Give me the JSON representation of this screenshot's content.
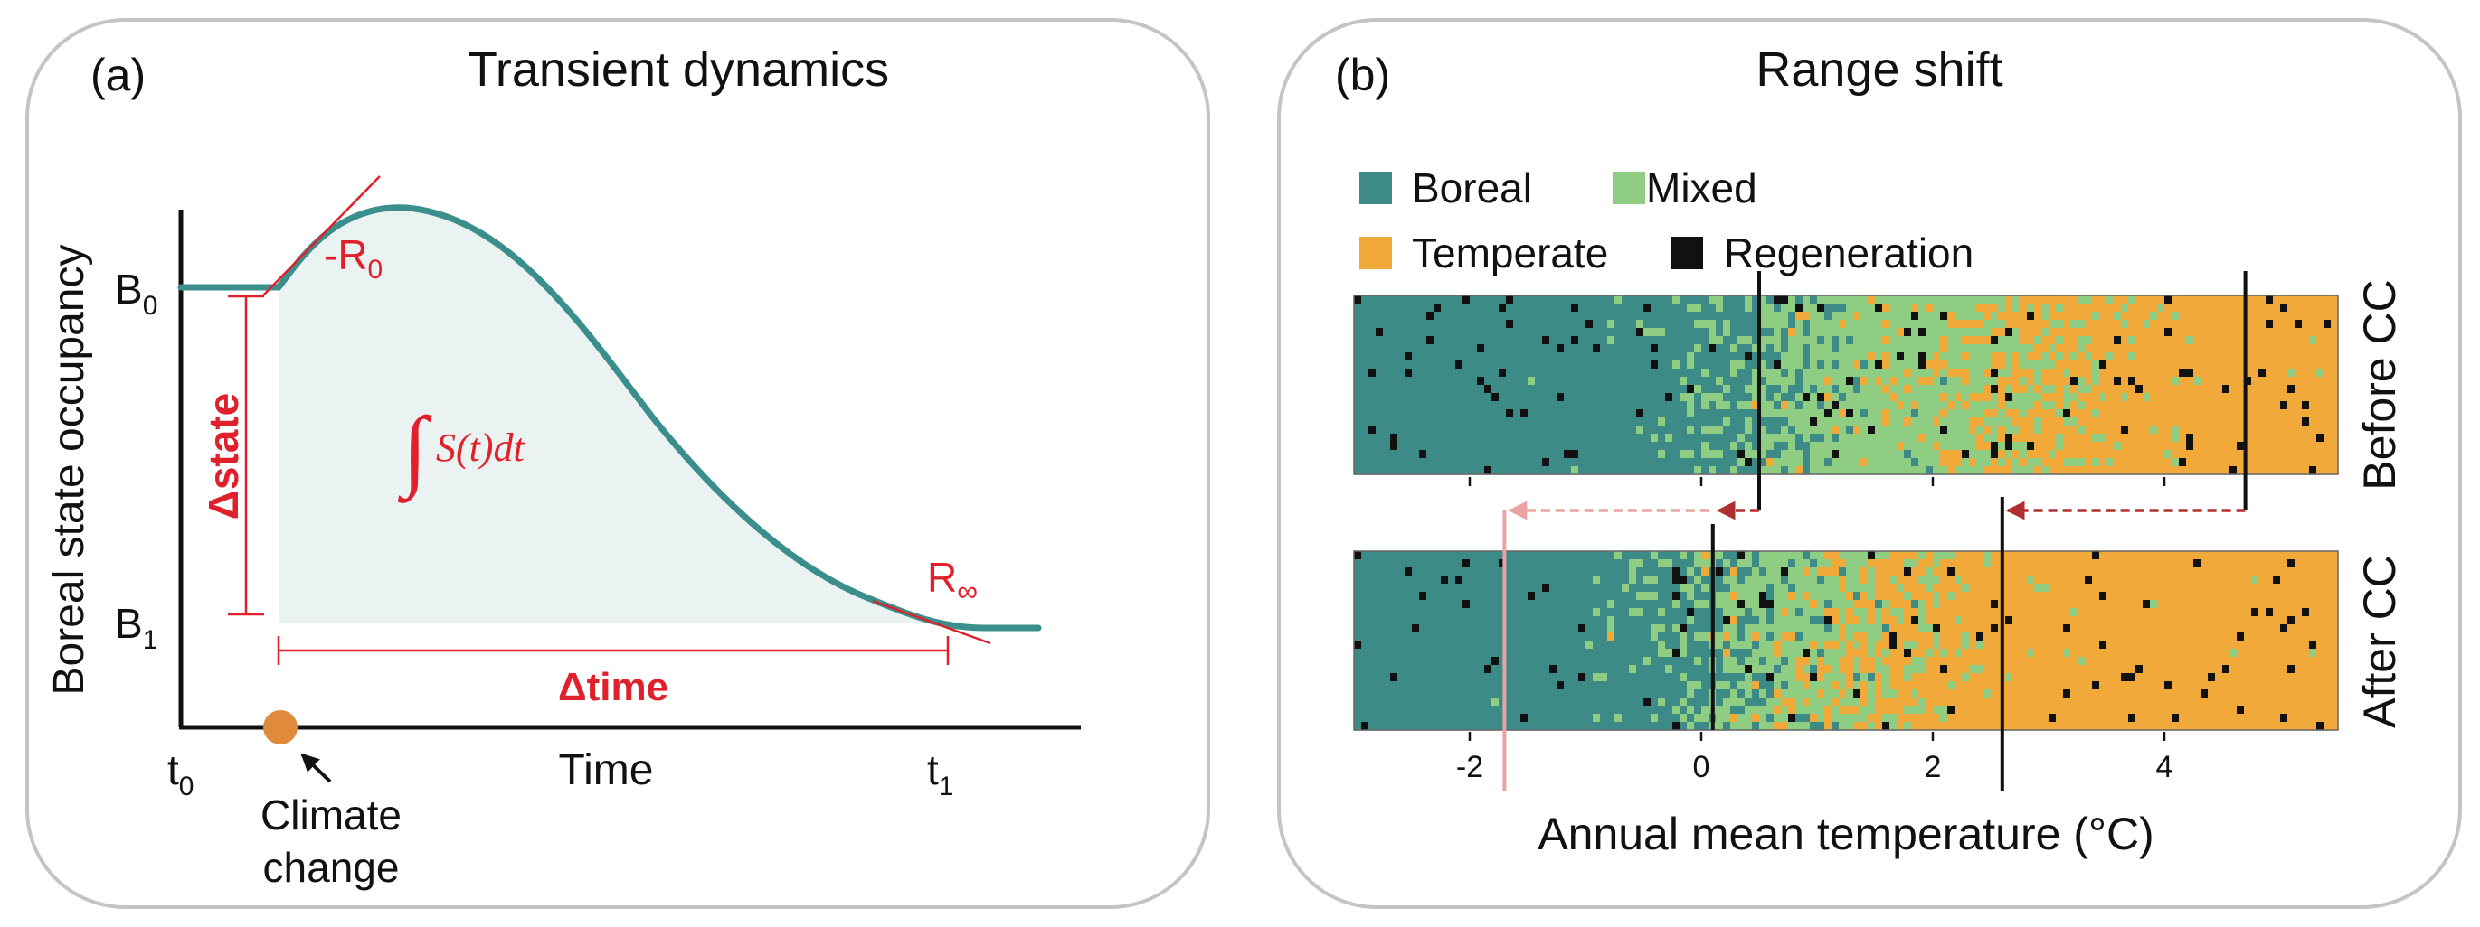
{
  "panel_a": {
    "letter": "(a)",
    "title": "Transient dynamics",
    "y_axis_label": "Boreal state occupancy",
    "x_axis_label": "Time",
    "b0_main": "B",
    "b0_sub": "0",
    "b1_main": "B",
    "b1_sub": "1",
    "t0_main": "t",
    "t0_sub": "0",
    "t1_main": "t",
    "t1_sub": "1",
    "r0_main": "-R",
    "r0_sub": "0",
    "rinf_main": "R",
    "rinf_sub": "∞",
    "delta_state": "Δstate",
    "delta_time": "Δtime",
    "integral_expr": "S(t)dt",
    "climate_change_line1": "Climate",
    "climate_change_line2": "change"
  },
  "panel_b": {
    "letter": "(b)",
    "title": "Range shift",
    "legend": [
      {
        "label": "Boreal",
        "color": "#3d8b86"
      },
      {
        "label": "Mixed",
        "color": "#8fcd82"
      },
      {
        "label": "Temperate",
        "color": "#f1a93a"
      },
      {
        "label": "Regeneration",
        "color": "#111111"
      }
    ],
    "row_labels": [
      "Before CC",
      "After CC"
    ],
    "x_axis_label": "Annual mean temperature (°C)",
    "x_ticks": [
      "-2",
      "0",
      "2",
      "4"
    ],
    "x_tick_values": [
      -2,
      0,
      2,
      4
    ],
    "x_range": [
      -3,
      5.5
    ],
    "before_cc_boundaries": [
      0.5,
      4.7
    ],
    "after_cc_boundaries": [
      0.1,
      2.6
    ],
    "arrow_faint_target": -1.7
  },
  "colors": {
    "curve": "#3a8f8c",
    "annotation": "#e0212b",
    "fill": "#eaf3f2",
    "climate_dot": "#e08a3c",
    "arrow_dark": "#b03030",
    "arrow_faint": "#e8a3a3"
  }
}
